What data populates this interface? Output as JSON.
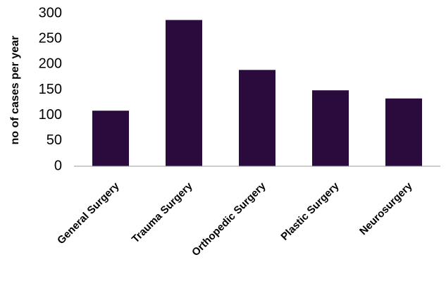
{
  "chart_data": {
    "type": "bar",
    "y_label": "no of cases per year",
    "categories": [
      "General Surgery",
      "Trauma Surgery",
      "Orthopedic Surgery",
      "Plastic Surgery",
      "Neurosurgery"
    ],
    "values": [
      109,
      287,
      189,
      149,
      133
    ],
    "color": "#2b0a3d",
    "ylim": [
      0,
      300
    ],
    "yticks": [
      0,
      50,
      100,
      150,
      200,
      250,
      300
    ],
    "grid": false
  }
}
